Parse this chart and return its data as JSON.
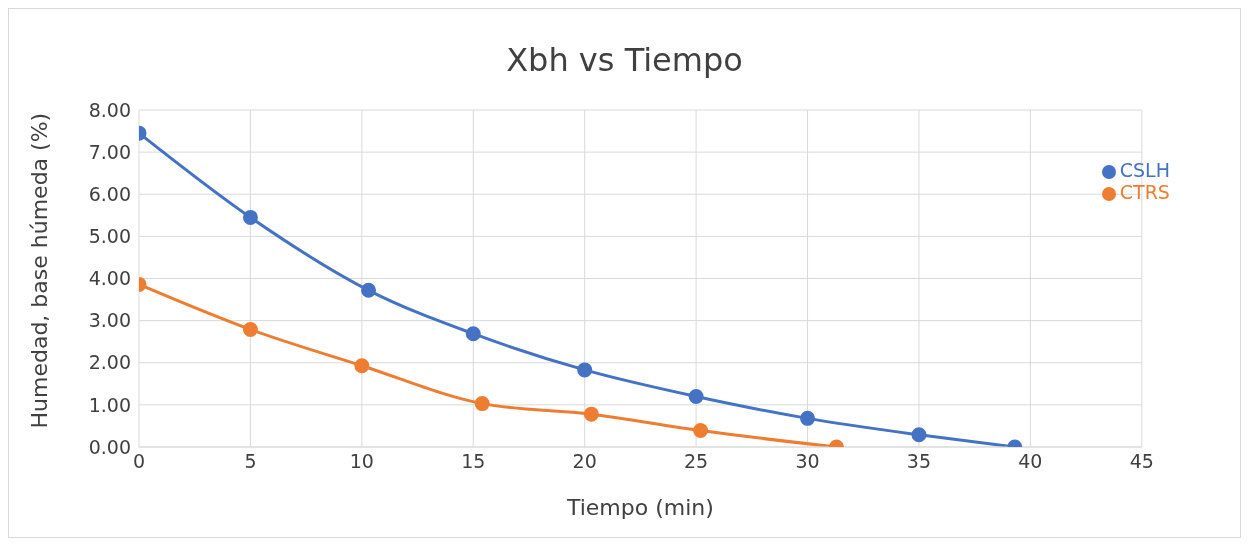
{
  "chart_data": {
    "type": "line",
    "title": "Xbh vs Tiempo",
    "xlabel": "Tiempo (min)",
    "ylabel": "Humedad, base húmeda (%)",
    "series": [
      {
        "name": "CSLH",
        "color": "#4472c4",
        "x": [
          0,
          5,
          10.3,
          15,
          20,
          25,
          30,
          35,
          39.3
        ],
        "values": [
          7.45,
          5.45,
          3.72,
          2.69,
          1.83,
          1.2,
          0.68,
          0.29,
          0
        ]
      },
      {
        "name": "CTRS",
        "color": "#ed7d31",
        "x": [
          0,
          5,
          10,
          15.4,
          20.3,
          25.2,
          31.3
        ],
        "values": [
          3.86,
          2.79,
          1.93,
          1.03,
          0.78,
          0.39,
          0
        ]
      }
    ],
    "xlim": [
      0,
      45
    ],
    "xticks": [
      0,
      5,
      10,
      15,
      20,
      25,
      30,
      35,
      40,
      45
    ],
    "ylim": [
      0,
      8
    ],
    "yticks": [
      {
        "value": 0,
        "label": "0.00"
      },
      {
        "value": 1,
        "label": "1.00"
      },
      {
        "value": 2,
        "label": "2.00"
      },
      {
        "value": 3,
        "label": "3.00"
      },
      {
        "value": 4,
        "label": "4.00"
      },
      {
        "value": 5,
        "label": "5.00"
      },
      {
        "value": 6,
        "label": "6.00"
      },
      {
        "value": 7,
        "label": "7.00"
      },
      {
        "value": 8,
        "label": "8.00"
      }
    ],
    "grid": true,
    "legend": "top right",
    "marker": "circle",
    "line_style": "solid"
  }
}
